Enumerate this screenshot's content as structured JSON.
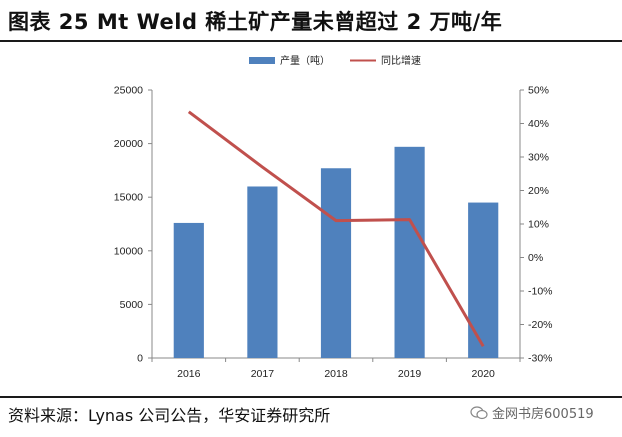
{
  "title": "图表 25 Mt Weld 稀土矿产量未曾超过 2 万吨/年",
  "source": "资料来源：Lynas 公司公告，华安证券研究所",
  "watermark": "金网书房600519",
  "chart_data": {
    "type": "bar",
    "categories": [
      "2016",
      "2017",
      "2018",
      "2019",
      "2020"
    ],
    "series": [
      {
        "name": "产量（吨）",
        "type": "bar",
        "axis": "left",
        "values": [
          12600,
          16000,
          17700,
          19700,
          14500
        ],
        "color": "#4f81bd"
      },
      {
        "name": "同比增速",
        "type": "line",
        "axis": "right",
        "values": [
          43.5,
          27,
          11,
          11.3,
          -26.5
        ],
        "color": "#c0504d"
      }
    ],
    "y_left": {
      "lim": [
        0,
        25000
      ],
      "ticks": [
        0,
        5000,
        10000,
        15000,
        20000,
        25000
      ]
    },
    "y_right": {
      "lim": [
        -30,
        50
      ],
      "ticks": [
        -30,
        -20,
        -10,
        0,
        10,
        20,
        30,
        40,
        50
      ],
      "unit": "%"
    },
    "legend_position": "top-center",
    "grid": false
  }
}
